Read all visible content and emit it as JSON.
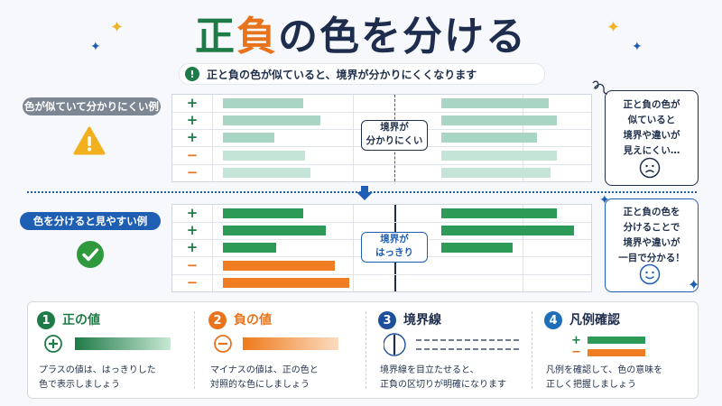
{
  "title": {
    "part1": "正",
    "part2": "負",
    "part3": "の色を分ける"
  },
  "subtitle": {
    "icon": "!",
    "text": "正と負の色が似ていると、境界が分かりにくくなります"
  },
  "example_bad": {
    "label": "色が似ていて分かりにくい例",
    "signs": [
      "+",
      "+",
      "+",
      "−",
      "−"
    ],
    "callout_line1": "境界が",
    "callout_line2": "分かりにくい",
    "note": [
      "正と負の色が",
      "似ていると",
      "境界や違いが",
      "見えにくい…"
    ],
    "left_bar_fractions": [
      0.44,
      0.53,
      0.28,
      0.45,
      0.48
    ],
    "right_bar_fractions": [
      0.54,
      0.58,
      0.48,
      0.58,
      0.55
    ],
    "colors": {
      "positive": "#a8d5c4",
      "negative": "#c3e4d7"
    }
  },
  "example_good": {
    "label": "色を分けると見やすい例",
    "signs": [
      "+",
      "+",
      "+",
      "−",
      "−"
    ],
    "callout_line1": "境界が",
    "callout_line2": "はっきり",
    "note": [
      "正と負の色を",
      "分けることで",
      "境界や違いが",
      "一目で分かる！"
    ],
    "left_bar_fractions": [
      0.44,
      0.56,
      0.29,
      0.61,
      0.69
    ],
    "right_bar_fractions": [
      0.58,
      0.67,
      0.36
    ],
    "colors": {
      "positive": "#2e9a57",
      "negative": "#f07d22"
    }
  },
  "tips": [
    {
      "num": "1",
      "title": "正の値",
      "desc_line1": "プラスの値は、はっきりした",
      "desc_line2": "色で表示しましょう",
      "color": "#1e7a46"
    },
    {
      "num": "2",
      "title": "負の値",
      "desc_line1": "マイナスの値は、正の色と",
      "desc_line2": "対照的な色にしましょう",
      "color": "#e8731d"
    },
    {
      "num": "3",
      "title": "境界線",
      "desc_line1": "境界線を目立たせると、",
      "desc_line2": "正負の区切りが明確になります",
      "color": "#1e4f9a"
    },
    {
      "num": "4",
      "title": "凡例確認",
      "desc_line1": "凡例を確認して、色の意味を",
      "desc_line2": "正しく把握しましょう",
      "color": "#1e6fb8"
    }
  ],
  "legend_signs": {
    "plus": "+",
    "minus": "−"
  },
  "icons": [
    "warning-icon",
    "check-icon",
    "sad-face-icon",
    "smile-face-icon",
    "sparkle-icon",
    "arrow-down-icon"
  ]
}
